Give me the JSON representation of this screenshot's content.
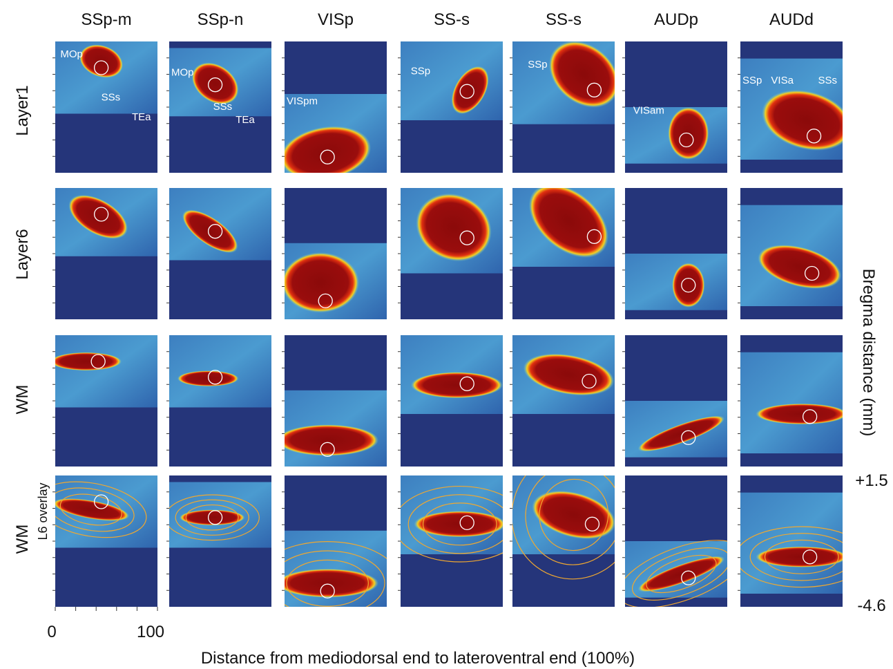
{
  "columns": [
    "SSp-m",
    "SSp-n",
    "VISp",
    "SS-s",
    "SS-s",
    "AUDp",
    "AUDd"
  ],
  "rows": [
    "Layer1",
    "Layer6",
    "WM",
    "WM"
  ],
  "row_sublabel": "L6 overlay",
  "panel_labels": [
    [
      "MOp",
      "SSs",
      "TEa"
    ],
    [
      "MOp",
      "SSs",
      "TEa"
    ],
    [
      "VISpm"
    ],
    [
      "SSp"
    ],
    [
      "SSp"
    ],
    [
      "VISam"
    ],
    [
      "SSp",
      "VISa",
      "SSs"
    ]
  ],
  "x_axis": {
    "ticks": [
      "0",
      "100"
    ],
    "label": "Distance from mediodorsal end to lateroventral end (100%)"
  },
  "y_axis": {
    "label": "Bregma distance (mm)",
    "ticks": [
      "+1.5",
      "-4.6"
    ]
  }
}
